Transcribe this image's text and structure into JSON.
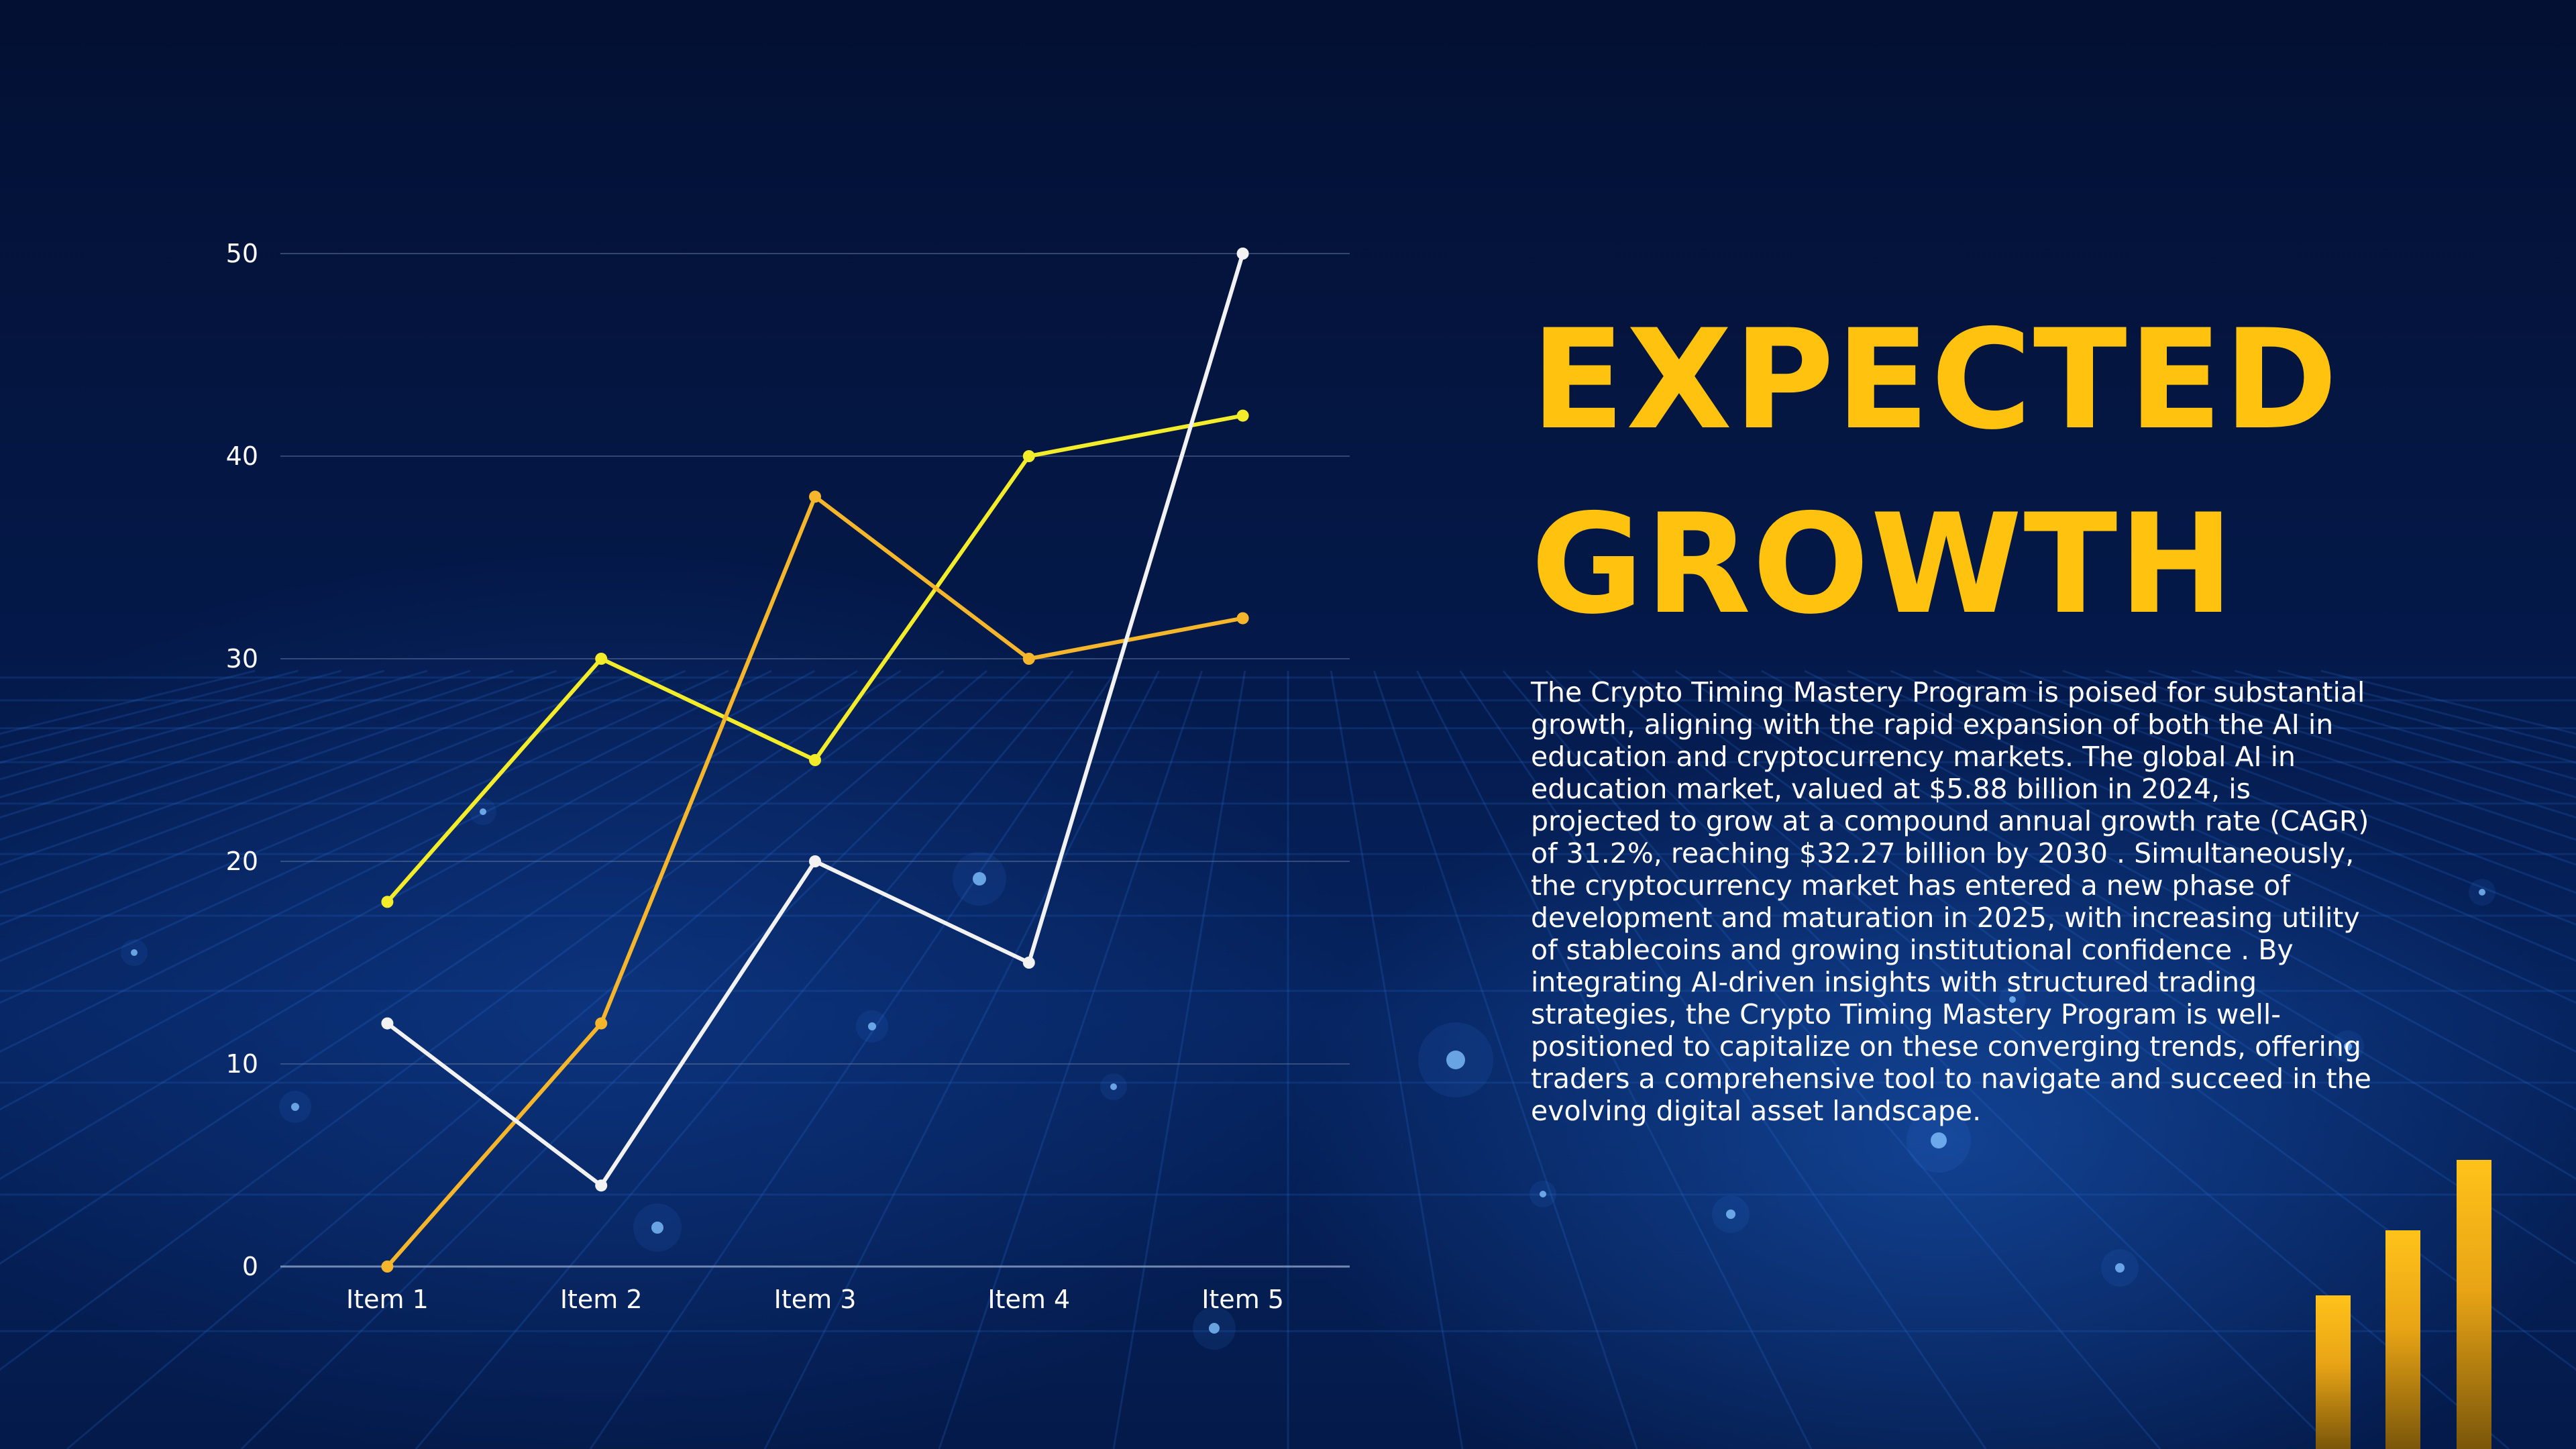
{
  "heading": {
    "line1": "EXPECTED",
    "line2": "GROWTH"
  },
  "description": "The Crypto Timing Mastery Program is poised for substantial growth, aligning with the rapid expansion of both the AI in education and cryptocurrency markets. The global AI in education market, valued at $5.88 billion in 2024, is projected to grow at a compound annual growth rate (CAGR) of 31.2%, reaching $32.27 billion by 2030 . Simultaneously, the cryptocurrency market has entered a new phase of development and maturation in 2025, with increasing utility of stablecoins and growing institutional confidence . By integrating AI-driven insights with structured trading strategies, the Crypto Timing Mastery Program is well-positioned to capitalize on these converging trends, offering traders a comprehensive tool to navigate and succeed in the evolving digital asset landscape.",
  "colors": {
    "accent": "#ffc20e",
    "background": "#04194a"
  },
  "decorative_bars": {
    "icon": "bar-chart-icon",
    "levels": [
      0.52,
      0.74,
      0.98
    ]
  },
  "chart_data": {
    "type": "line",
    "categories": [
      "Item 1",
      "Item 2",
      "Item 3",
      "Item 4",
      "Item 5"
    ],
    "ylim": [
      0,
      50
    ],
    "yticks": [
      0,
      10,
      20,
      30,
      40,
      50
    ],
    "grid": true,
    "legend": "none",
    "series": [
      {
        "color": "#f2ec2a",
        "values": [
          18,
          30,
          25,
          40,
          42
        ]
      },
      {
        "color": "#f6b62b",
        "values": [
          0,
          12,
          38,
          30,
          32
        ]
      },
      {
        "color": "#f2f2f2",
        "values": [
          12,
          4,
          20,
          15,
          50
        ]
      }
    ]
  }
}
